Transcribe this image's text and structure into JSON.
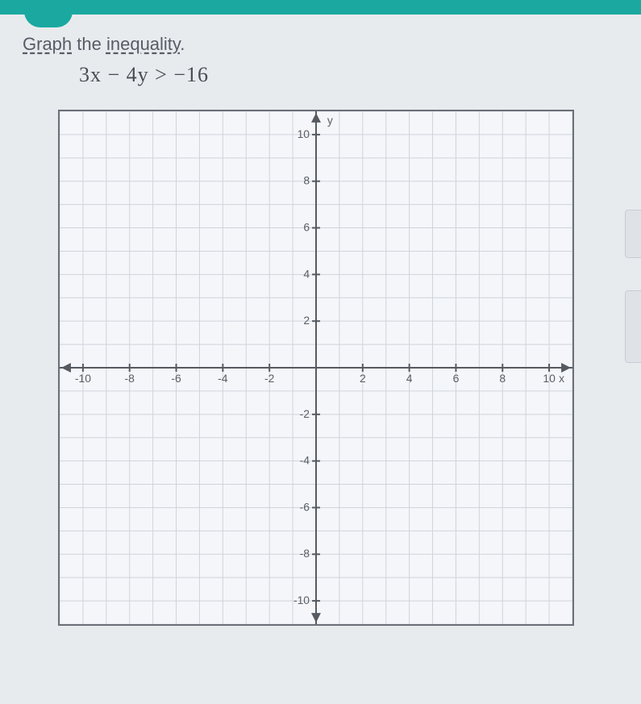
{
  "prompt": {
    "word1": "Graph",
    "mid": " the ",
    "word2": "inequality",
    "end": "."
  },
  "equation": "3x − 4y > −16",
  "chart": {
    "type": "cartesian-grid",
    "xlim": [
      -11,
      11
    ],
    "ylim": [
      -11,
      11
    ],
    "tick_step": 2,
    "grid_step": 1,
    "xlabel": "x",
    "ylabel": "y",
    "background": "#f4f6f9",
    "grid_color": "#cfd4db",
    "axis_color": "#555a60",
    "label_fontsize": 14,
    "tick_labels_neg_x": [
      "-10",
      "-8",
      "-6",
      "-4",
      "-2"
    ],
    "tick_labels_pos_x": [
      "2",
      "4",
      "6",
      "8",
      "10"
    ],
    "tick_labels_neg_y": [
      "-2",
      "-4",
      "-6",
      "-8",
      "-10"
    ],
    "tick_labels_pos_y": [
      "2",
      "4",
      "6",
      "8",
      "10"
    ]
  }
}
